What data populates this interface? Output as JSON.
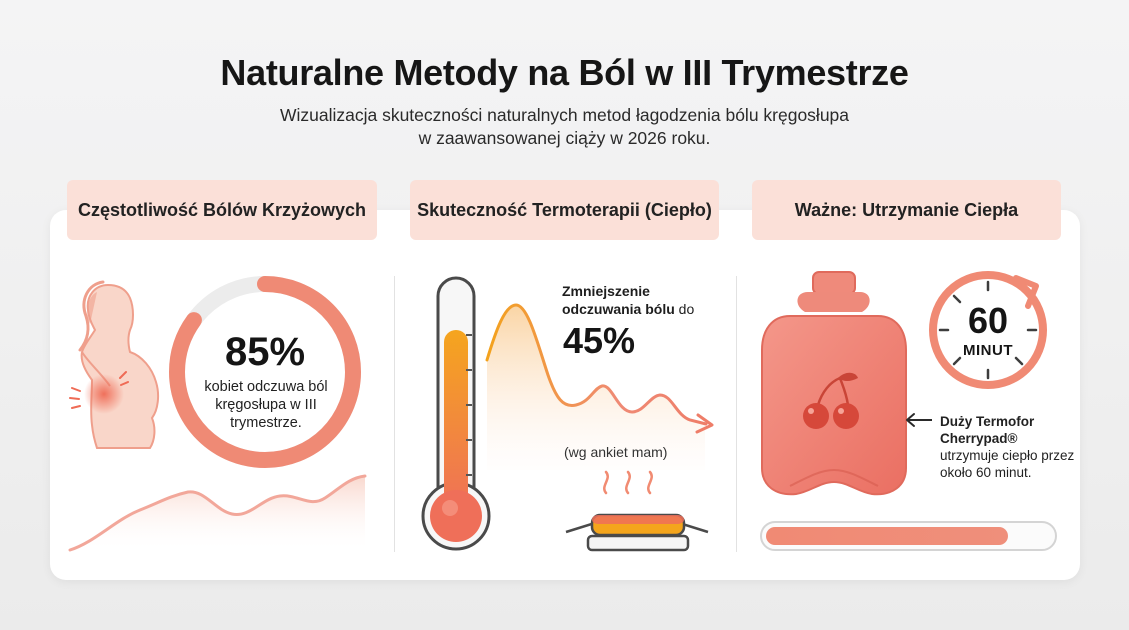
{
  "header": {
    "title": "Naturalne Metody na Ból w III Trymestrze",
    "subtitle_line1": "Wizualizacja skuteczności naturalnych metod łagodzenia bólu kręgosłupa",
    "subtitle_line2": "w zaawansowanej ciąży w 2026 roku."
  },
  "sections": [
    {
      "heading": "Częstotliwość Bólów Krzyżowych",
      "stat_value": "85%",
      "stat_fraction": 0.85,
      "stat_text": "kobiet odczuwa ból kręgosłupa w III trymestrze."
    },
    {
      "heading": "Skuteczność Termoterapii (Ciepło)",
      "label_bold": "Zmniejszenie odczuwania bólu",
      "label_plain": "do",
      "stat_value": "45%",
      "source": "(wg ankiet mam)"
    },
    {
      "heading": "Ważne: Utrzymanie Ciepła",
      "timer_value": "60",
      "timer_unit": "MINUT",
      "product_name": "Duży Termofor Cherrypad®",
      "product_desc": "utrzymuje ciepło przez około 60 minut.",
      "progress_fraction": 0.85
    }
  ],
  "colors": {
    "accent": "#ef8a75",
    "accent_dark": "#e0604f",
    "header_bg": "#fbe0d8",
    "track": "#ececec",
    "orange": "#f4a51c"
  },
  "icons": [
    "pregnant-woman-icon",
    "thermometer-icon",
    "heat-pad-icon",
    "hot-water-bottle-icon",
    "cherry-icon",
    "timer-icon",
    "arrow-left-icon"
  ]
}
